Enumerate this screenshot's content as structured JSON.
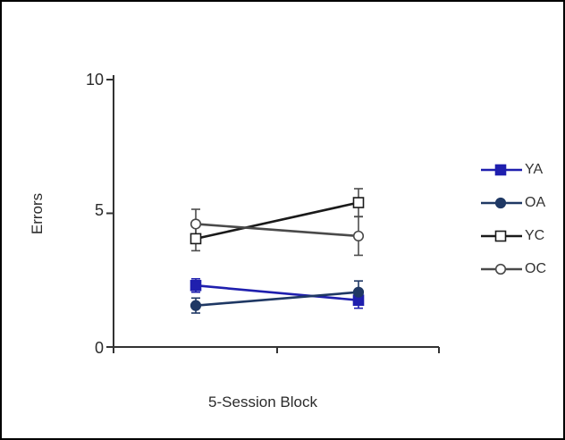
{
  "chart_data": {
    "type": "line",
    "title": "",
    "xlabel": "5-Session Block",
    "ylabel": "Errors",
    "ylim": [
      0,
      10
    ],
    "yticks": [
      0,
      5,
      10
    ],
    "categories": [
      "",
      ""
    ],
    "grid": false,
    "legend_position": "right",
    "series": [
      {
        "name": "YA",
        "color": "#1F1FAE",
        "error_color": "#1F1FAE",
        "marker": "square",
        "marker_style": "filled",
        "values": [
          2.3,
          1.75
        ],
        "errors": [
          0.25,
          0.3
        ]
      },
      {
        "name": "OA",
        "color": "#1F3864",
        "error_color": "#1F3864",
        "marker": "circle",
        "marker_style": "filled",
        "values": [
          1.55,
          2.05
        ],
        "errors": [
          0.28,
          0.42
        ]
      },
      {
        "name": "YC",
        "color": "#1A1A1A",
        "error_color": "#4D4D4D",
        "marker": "square",
        "marker_style": "open",
        "values": [
          4.05,
          5.4
        ],
        "errors": [
          0.45,
          0.52
        ]
      },
      {
        "name": "OC",
        "color": "#4A4A4A",
        "error_color": "#4D4D4D",
        "marker": "circle",
        "marker_style": "open",
        "values": [
          4.6,
          4.15
        ],
        "errors": [
          0.55,
          0.72
        ]
      }
    ]
  },
  "colors": {
    "axis": "#333333",
    "frame": "#000000",
    "text": "#2b2b2b"
  }
}
